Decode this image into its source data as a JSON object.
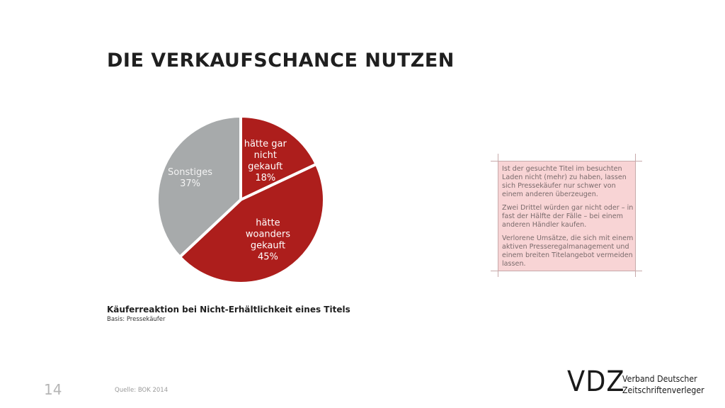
{
  "title": "DIE VERKAUFSCHANCE NUTZEN",
  "colors": {
    "red": "#ad1e1c",
    "grey": "#a7aaab",
    "note_bg": "#f8d4d5"
  },
  "chart_data": {
    "type": "pie",
    "title": "Käuferreaktion bei Nicht-Erhältlichkeit eines Titels",
    "subtitle": "Basis: Pressekäufer",
    "slices": [
      {
        "label_lines": [
          "hätte gar",
          "nicht",
          "gekauft",
          "18%"
        ],
        "value": 18,
        "color": "#ad1e1c"
      },
      {
        "label_lines": [
          "hätte",
          "woanders",
          "gekauft",
          "45%"
        ],
        "value": 45,
        "color": "#ad1e1c"
      },
      {
        "label_lines": [
          "Sonstiges",
          "37%"
        ],
        "value": 37,
        "color": "#a7aaab"
      }
    ]
  },
  "note": {
    "paragraphs": [
      "Ist der gesuchte Titel im besuchten Laden nicht (mehr) zu haben, lassen sich Pressekäufer nur schwer von einem anderen überzeugen.",
      "Zwei Drittel würden gar nicht oder – in fast der Hälfte der Fälle – bei einem anderen Händler kaufen.",
      "Verlorene Umsätze, die sich mit einem aktiven Presseregalmanagement  und einem breiten Titelangebot vermeiden lassen."
    ]
  },
  "footer": {
    "page_number": "14",
    "source": "Quelle: BOK 2014"
  },
  "logo": {
    "mark": "VDZ",
    "line1": "Verband Deutscher",
    "line2": "Zeitschriftenverleger"
  }
}
